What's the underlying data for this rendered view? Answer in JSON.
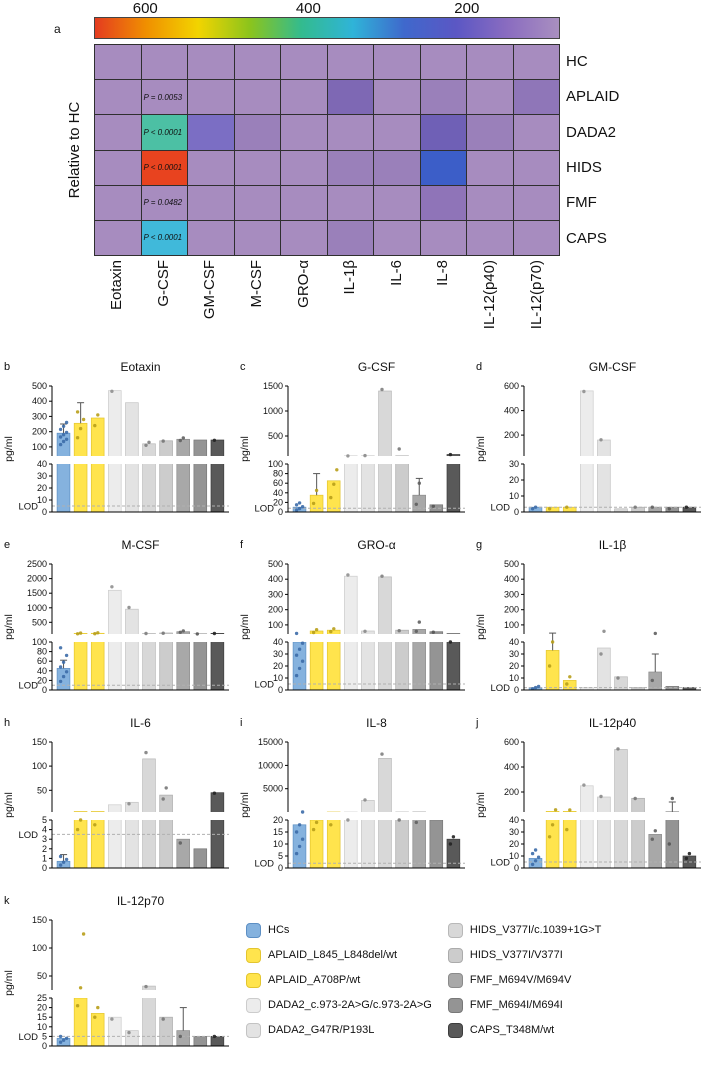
{
  "chart_data": [
    {
      "type": "heatmap",
      "panel": "a",
      "ylabel": "Relative to HC",
      "colorbar": {
        "tick_labels": [
          "600",
          "400",
          "200"
        ],
        "tick_pos_pct": [
          11,
          46,
          80
        ],
        "gradient": [
          "#e43c20",
          "#f09000",
          "#f2d400",
          "#8cc41c",
          "#33bb8e",
          "#2fb4d8",
          "#3f68cc",
          "#5b57c4",
          "#8a6cc0",
          "#a98fc0"
        ]
      },
      "rows": [
        "HC",
        "APLAID",
        "DADA2",
        "HIDS",
        "FMF",
        "CAPS"
      ],
      "columns": [
        "Eotaxin",
        "G-CSF",
        "GM-CSF",
        "M-CSF",
        "GRO-α",
        "IL-1β",
        "IL-6",
        "IL-8",
        "IL-12(p40)",
        "IL-12(p70)"
      ],
      "cells": [
        [
          "#a78cbf",
          "#a78cbf",
          "#a78cbf",
          "#a78cbf",
          "#a78cbf",
          "#a78cbf",
          "#a78cbf",
          "#a78cbf",
          "#a78cbf",
          "#a78cbf"
        ],
        [
          "#a78cbf",
          "#a78cbf",
          "#a78cbf",
          "#a78cbf",
          "#a78cbf",
          "#7e68b4",
          "#a78cbf",
          "#9a80ba",
          "#a78cbf",
          "#8f76b8"
        ],
        [
          "#a78cbf",
          "#4cc0a4",
          "#7b6ec4",
          "#9a80ba",
          "#a78cbf",
          "#a78cbf",
          "#a78cbf",
          "#6f60b6",
          "#9a80ba",
          "#a78cbf"
        ],
        [
          "#a78cbf",
          "#e8431f",
          "#a78cbf",
          "#a78cbf",
          "#a78cbf",
          "#9a80ba",
          "#9a80ba",
          "#3c5ec8",
          "#a78cbf",
          "#a78cbf"
        ],
        [
          "#a78cbf",
          "#a78cbf",
          "#a78cbf",
          "#a78cbf",
          "#a78cbf",
          "#a78cbf",
          "#a78cbf",
          "#8f74b8",
          "#a78cbf",
          "#a78cbf"
        ],
        [
          "#a78cbf",
          "#40b9da",
          "#a78cbf",
          "#a78cbf",
          "#a78cbf",
          "#9a80ba",
          "#a78cbf",
          "#a78cbf",
          "#a78cbf",
          "#a78cbf"
        ]
      ],
      "annotations": [
        {
          "row": 1,
          "col": 1,
          "text": "P = 0.0053"
        },
        {
          "row": 2,
          "col": 1,
          "text": "P < 0.0001"
        },
        {
          "row": 3,
          "col": 1,
          "text": "P < 0.0001"
        },
        {
          "row": 4,
          "col": 1,
          "text": "P = 0.0482"
        },
        {
          "row": 5,
          "col": 1,
          "text": "P < 0.0001"
        }
      ]
    },
    {
      "type": "bar",
      "panel": "b",
      "title": "Eotaxin",
      "ylabel": "pg/ml",
      "lod_label": "LOD",
      "lod": 5,
      "lower_ticks": [
        0,
        10,
        20,
        30,
        40
      ],
      "upper_ticks": [
        100,
        200,
        300,
        400,
        500
      ],
      "upper_max": 500,
      "bars": [
        {
          "v": 190,
          "err": 250,
          "dots": [
            115,
            135,
            150,
            165,
            180,
            195,
            215,
            235,
            260
          ]
        },
        {
          "v": 255,
          "err": 390,
          "dots": [
            160,
            220,
            280,
            330
          ]
        },
        {
          "v": 290,
          "dots": [
            240,
            310
          ]
        },
        {
          "v": 470,
          "dots": [
            465
          ]
        },
        {
          "v": 390
        },
        {
          "v": 120,
          "dots": [
            110,
            130
          ]
        },
        {
          "v": 140,
          "dots": [
            138
          ]
        },
        {
          "v": 150,
          "dots": [
            142,
            158
          ]
        },
        {
          "v": 145
        },
        {
          "v": 145,
          "dots": [
            143
          ]
        }
      ]
    },
    {
      "type": "bar",
      "panel": "c",
      "title": "G-CSF",
      "ylabel": "pg/ml",
      "lod_label": "LOD",
      "lod": 8,
      "lower_ticks": [
        0,
        20,
        40,
        60,
        80,
        100
      ],
      "upper_ticks": [
        500,
        1000,
        1500
      ],
      "upper_max": 1500,
      "bars": [
        {
          "v": 10,
          "dots": [
            4,
            7,
            11,
            15,
            19
          ]
        },
        {
          "v": 35,
          "err": 80,
          "dots": [
            18,
            45
          ]
        },
        {
          "v": 65,
          "dots": [
            30,
            58,
            88
          ]
        },
        {
          "v": 105,
          "dots": [
            102
          ]
        },
        {
          "v": 105,
          "dots": [
            108
          ]
        },
        {
          "v": 1400,
          "dots": [
            1430
          ]
        },
        {
          "v": 105,
          "dots": [
            240
          ]
        },
        {
          "v": 35,
          "err": 70,
          "dots": [
            16,
            60
          ]
        },
        {
          "v": 15,
          "dots": [
            12
          ]
        },
        {
          "v": 130,
          "dots": [
            128
          ]
        }
      ]
    },
    {
      "type": "bar",
      "panel": "d",
      "title": "GM-CSF",
      "ylabel": "pg/ml",
      "lod_label": "LOD",
      "lod": 3,
      "lower_ticks": [
        0,
        10,
        20,
        30
      ],
      "upper_ticks": [
        200,
        400,
        600
      ],
      "upper_max": 600,
      "bars": [
        {
          "v": 3,
          "dots": [
            2,
            3
          ]
        },
        {
          "v": 3,
          "dots": [
            2
          ]
        },
        {
          "v": 3,
          "dots": [
            3
          ]
        },
        {
          "v": 560,
          "dots": [
            555
          ]
        },
        {
          "v": 160,
          "dots": [
            162
          ]
        },
        {
          "v": 2
        },
        {
          "v": 3,
          "dots": [
            3
          ]
        },
        {
          "v": 3,
          "dots": [
            3
          ]
        },
        {
          "v": 3,
          "dots": [
            2
          ]
        },
        {
          "v": 3,
          "dots": [
            3
          ]
        }
      ]
    },
    {
      "type": "bar",
      "panel": "e",
      "title": "M-CSF",
      "ylabel": "pg/ml",
      "lod_label": "LOD",
      "lod": 10,
      "lower_ticks": [
        0,
        20,
        40,
        60,
        80,
        100
      ],
      "upper_ticks": [
        500,
        1000,
        1500,
        2000,
        2500
      ],
      "upper_max": 2500,
      "bars": [
        {
          "v": 45,
          "err": 62,
          "dots": [
            18,
            28,
            38,
            48,
            58,
            72,
            88
          ]
        },
        {
          "v": 120,
          "dots": [
            108,
            132
          ]
        },
        {
          "v": 125,
          "dots": [
            112,
            140
          ]
        },
        {
          "v": 1600,
          "dots": [
            1720
          ]
        },
        {
          "v": 950,
          "dots": [
            1010
          ]
        },
        {
          "v": 120,
          "dots": [
            116
          ]
        },
        {
          "v": 135,
          "dots": [
            128
          ]
        },
        {
          "v": 180,
          "dots": [
            160,
            205
          ]
        },
        {
          "v": 105,
          "dots": [
            102
          ]
        },
        {
          "v": 120,
          "dots": [
            118
          ]
        }
      ]
    },
    {
      "type": "bar",
      "panel": "f",
      "title": "GRO-α",
      "ylabel": "pg/ml",
      "lod_label": "LOD",
      "lod": 5,
      "lower_ticks": [
        0,
        10,
        20,
        30,
        40
      ],
      "upper_ticks": [
        100,
        200,
        300,
        400,
        500
      ],
      "upper_max": 500,
      "bars": [
        {
          "v": 40,
          "dots": [
            12,
            18,
            24,
            29,
            34,
            39,
            44
          ]
        },
        {
          "v": 60,
          "dots": [
            50,
            68
          ]
        },
        {
          "v": 65,
          "dots": [
            56,
            74
          ]
        },
        {
          "v": 420,
          "dots": [
            428
          ]
        },
        {
          "v": 60,
          "dots": [
            58
          ]
        },
        {
          "v": 415,
          "dots": [
            420
          ]
        },
        {
          "v": 65,
          "dots": [
            62
          ]
        },
        {
          "v": 70,
          "dots": [
            58,
            118
          ]
        },
        {
          "v": 55,
          "dots": [
            52
          ]
        },
        {
          "v": 42,
          "dots": [
            40
          ]
        }
      ]
    },
    {
      "type": "bar",
      "panel": "g",
      "title": "IL-1β",
      "ylabel": "pg/ml",
      "lod_label": "LOD",
      "lod": 2,
      "lower_ticks": [
        0,
        10,
        20,
        30,
        40
      ],
      "upper_ticks": [
        100,
        200,
        300,
        400,
        500
      ],
      "upper_max": 500,
      "bars": [
        {
          "v": 2,
          "dots": [
            1,
            2,
            3
          ]
        },
        {
          "v": 33,
          "err": 46,
          "dots": [
            20,
            40
          ]
        },
        {
          "v": 8,
          "dots": [
            5,
            11
          ]
        },
        {
          "v": 2
        },
        {
          "v": 35,
          "dots": [
            30,
            58
          ]
        },
        {
          "v": 11,
          "dots": [
            10
          ]
        },
        {
          "v": 2
        },
        {
          "v": 15,
          "err": 30,
          "dots": [
            8,
            44
          ]
        },
        {
          "v": 3
        },
        {
          "v": 2
        }
      ]
    },
    {
      "type": "bar",
      "panel": "h",
      "title": "IL-6",
      "ylabel": "pg/ml",
      "lod_label": "LOD",
      "lod": 3.5,
      "lower_ticks": [
        0,
        1,
        2,
        3,
        4,
        5
      ],
      "upper_ticks": [
        50,
        100,
        150
      ],
      "upper_max": 150,
      "bars": [
        {
          "v": 0.7,
          "err": 1.4,
          "dots": [
            0.3,
            0.6,
            0.9,
            1.2
          ]
        },
        {
          "v": 6,
          "dots": [
            4,
            5
          ]
        },
        {
          "v": 6,
          "dots": [
            4.5
          ]
        },
        {
          "v": 20
        },
        {
          "v": 25,
          "dots": [
            22
          ]
        },
        {
          "v": 115,
          "dots": [
            128
          ]
        },
        {
          "v": 40,
          "dots": [
            32,
            55
          ]
        },
        {
          "v": 3,
          "dots": [
            2.6
          ]
        },
        {
          "v": 2
        },
        {
          "v": 45,
          "dots": [
            44
          ]
        }
      ]
    },
    {
      "type": "bar",
      "panel": "i",
      "title": "IL-8",
      "ylabel": "pg/ml",
      "lod_label": "LOD",
      "lod": 2,
      "lower_ticks": [
        0,
        5,
        10,
        15,
        20
      ],
      "upper_ticks": [
        5000,
        10000,
        15000
      ],
      "upper_max": 15000,
      "bars": [
        {
          "v": 18,
          "dots": [
            6,
            9,
            12,
            15,
            18,
            21
          ]
        },
        {
          "v": 20,
          "dots": [
            16,
            19
          ]
        },
        {
          "v": 21,
          "dots": [
            18
          ]
        },
        {
          "v": 21,
          "dots": [
            20
          ]
        },
        {
          "v": 2500,
          "dots": [
            2600
          ]
        },
        {
          "v": 11500,
          "dots": [
            12400
          ]
        },
        {
          "v": 21,
          "dots": [
            20
          ]
        },
        {
          "v": 21,
          "dots": [
            19
          ]
        },
        {
          "v": 20
        },
        {
          "v": 12,
          "dots": [
            10,
            13
          ]
        }
      ]
    },
    {
      "type": "bar",
      "panel": "j",
      "title": "IL-12p40",
      "ylabel": "pg/ml",
      "lod_label": "LOD",
      "lod": 5,
      "lower_ticks": [
        0,
        10,
        20,
        30,
        40
      ],
      "upper_ticks": [
        200,
        400,
        600
      ],
      "upper_max": 600,
      "bars": [
        {
          "v": 8,
          "dots": [
            3,
            6,
            9,
            12,
            15
          ]
        },
        {
          "v": 45,
          "dots": [
            26,
            36,
            58
          ]
        },
        {
          "v": 45,
          "dots": [
            32,
            56
          ]
        },
        {
          "v": 250,
          "dots": [
            255
          ]
        },
        {
          "v": 160,
          "dots": [
            164
          ]
        },
        {
          "v": 540,
          "dots": [
            545
          ]
        },
        {
          "v": 150,
          "dots": [
            148
          ]
        },
        {
          "v": 28,
          "dots": [
            24,
            31
          ]
        },
        {
          "v": 42,
          "err": 120,
          "dots": [
            20,
            148
          ]
        },
        {
          "v": 10,
          "dots": [
            8,
            12
          ]
        }
      ]
    },
    {
      "type": "bar",
      "panel": "k",
      "title": "IL-12p70",
      "ylabel": "pg/ml",
      "lod_label": "LOD",
      "lod": 5,
      "lower_ticks": [
        0,
        5,
        10,
        15,
        20,
        25
      ],
      "upper_ticks": [
        50,
        100,
        150
      ],
      "upper_max": 150,
      "bars": [
        {
          "v": 4,
          "dots": [
            2,
            3,
            4,
            5
          ]
        },
        {
          "v": 25,
          "dots": [
            21,
            29,
            125
          ]
        },
        {
          "v": 17,
          "dots": [
            15,
            20
          ]
        },
        {
          "v": 15,
          "dots": [
            14
          ]
        },
        {
          "v": 8,
          "dots": [
            7
          ]
        },
        {
          "v": 32,
          "dots": [
            31
          ]
        },
        {
          "v": 15,
          "dots": [
            14
          ]
        },
        {
          "v": 8,
          "err": 20,
          "dots": [
            5
          ]
        },
        {
          "v": 5
        },
        {
          "v": 5,
          "dots": [
            5
          ]
        }
      ]
    }
  ],
  "groups": [
    {
      "name": "HCs",
      "fill": "#85b2de",
      "edge": "#5d8fc4",
      "dot": "#3c6ca8"
    },
    {
      "name": "APLAID_L845_L848del/wt",
      "fill": "#ffe44d",
      "edge": "#e3c52f",
      "dot": "#b89e1a"
    },
    {
      "name": "APLAID_A708P/wt",
      "fill": "#ffe44d",
      "edge": "#e3c52f",
      "dot": "#b89e1a"
    },
    {
      "name": "DADA2_c.973-2A>G/c.973-2A>G",
      "fill": "#ececec",
      "edge": "#cccccc",
      "dot": "#8f8f8f"
    },
    {
      "name": "DADA2_G47R/P193L",
      "fill": "#e3e3e3",
      "edge": "#c3c3c3",
      "dot": "#8a8a8a"
    },
    {
      "name": "HIDS_V377I/c.1039+1G>T",
      "fill": "#d8d8d8",
      "edge": "#b8b8b8",
      "dot": "#808080"
    },
    {
      "name": "HIDS_V377I/V377I",
      "fill": "#cccccc",
      "edge": "#ababab",
      "dot": "#777777"
    },
    {
      "name": "FMF_M694V/M694V",
      "fill": "#a8a8a8",
      "edge": "#8b8b8b",
      "dot": "#5f5f5f"
    },
    {
      "name": "FMF_M694I/M694I",
      "fill": "#949494",
      "edge": "#787878",
      "dot": "#555555"
    },
    {
      "name": "CAPS_T348M/wt",
      "fill": "#595959",
      "edge": "#3d3d3d",
      "dot": "#222222"
    }
  ],
  "legend": {
    "columns": [
      [
        0,
        1,
        2,
        3,
        4
      ],
      [
        5,
        6,
        7,
        8,
        9
      ]
    ]
  }
}
